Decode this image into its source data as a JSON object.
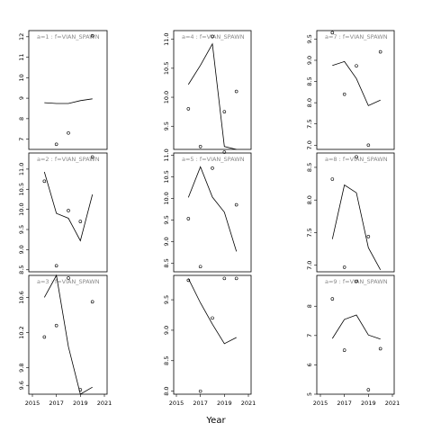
{
  "chart_data": {
    "type": "scatter",
    "xlabel": "Year",
    "ylabel": "",
    "x_ticks": [
      2015,
      2017,
      2019,
      2021
    ],
    "xlim": [
      2015,
      2021
    ],
    "panels": [
      {
        "strip": "a=1 : f=VIAN_SPAWN",
        "ylim": [
          6.5,
          12.3
        ],
        "yticks": [
          7,
          8,
          9,
          10,
          11,
          12
        ],
        "points": [
          [
            2017,
            6.75
          ],
          [
            2018,
            7.3
          ],
          [
            2020,
            12.05
          ]
        ],
        "line": [
          [
            2016,
            8.78
          ],
          [
            2017,
            8.74
          ],
          [
            2018,
            8.74
          ],
          [
            2019,
            8.88
          ],
          [
            2020,
            8.97
          ]
        ]
      },
      {
        "strip": "a=4 : f=VIAN_SPAWN",
        "ylim": [
          9.1,
          11.15
        ],
        "yticks": [
          9.5,
          10.0,
          10.5,
          11.0
        ],
        "points": [
          [
            2016,
            9.8
          ],
          [
            2017,
            9.15
          ],
          [
            2018,
            11.05
          ],
          [
            2019,
            9.75
          ],
          [
            2020,
            10.1
          ]
        ],
        "line": [
          [
            2016,
            10.22
          ],
          [
            2017,
            10.55
          ],
          [
            2018,
            10.92
          ],
          [
            2019,
            9.15
          ],
          [
            2020,
            8.95
          ]
        ]
      },
      {
        "strip": "a=7 : f=VIAN_SPAWN",
        "ylim": [
          6.9,
          9.7
        ],
        "yticks": [
          7.0,
          7.5,
          8.0,
          8.5,
          9.0,
          9.5
        ],
        "points": [
          [
            2016,
            9.65
          ],
          [
            2017,
            8.2
          ],
          [
            2018,
            8.87
          ],
          [
            2019,
            7.0
          ],
          [
            2020,
            9.2
          ]
        ],
        "line": [
          [
            2016,
            8.88
          ],
          [
            2017,
            8.97
          ],
          [
            2018,
            8.57
          ],
          [
            2019,
            7.93
          ],
          [
            2020,
            8.06
          ]
        ]
      },
      {
        "strip": "a=2 : f=VIAN_SPAWN",
        "ylim": [
          8.45,
          11.4
        ],
        "yticks": [
          8.5,
          9.0,
          9.5,
          10.0,
          10.5,
          11.0
        ],
        "points": [
          [
            2016,
            10.7
          ],
          [
            2017,
            8.6
          ],
          [
            2018,
            9.97
          ],
          [
            2019,
            9.7
          ],
          [
            2020,
            11.3
          ]
        ],
        "line": [
          [
            2016,
            10.93
          ],
          [
            2017,
            9.9
          ],
          [
            2018,
            9.78
          ],
          [
            2019,
            9.22
          ],
          [
            2020,
            10.37
          ]
        ]
      },
      {
        "strip": "a=5 : f=VIAN_SPAWN",
        "ylim": [
          8.3,
          11.05
        ],
        "yticks": [
          8.5,
          9.0,
          9.5,
          10.0,
          10.5,
          11.0
        ],
        "points": [
          [
            2016,
            9.53
          ],
          [
            2017,
            8.42
          ],
          [
            2018,
            10.7
          ],
          [
            2019,
            11.07
          ],
          [
            2020,
            9.85
          ]
        ],
        "line": [
          [
            2016,
            10.02
          ],
          [
            2017,
            10.73
          ],
          [
            2018,
            10.03
          ],
          [
            2019,
            9.68
          ],
          [
            2020,
            8.77
          ]
        ]
      },
      {
        "strip": "a=8 : f=VIAN_SPAWN",
        "ylim": [
          6.9,
          8.72
        ],
        "yticks": [
          7.0,
          7.5,
          8.0,
          8.5
        ],
        "points": [
          [
            2016,
            8.32
          ],
          [
            2017,
            6.97
          ],
          [
            2018,
            8.66
          ],
          [
            2019,
            7.44
          ]
        ],
        "line": [
          [
            2016,
            7.4
          ],
          [
            2017,
            8.23
          ],
          [
            2018,
            8.11
          ],
          [
            2019,
            7.27
          ],
          [
            2020,
            6.93
          ]
        ]
      },
      {
        "strip": "a=3 : f=VIAN_SPAWN",
        "ylim": [
          9.5,
          10.85
        ],
        "yticks": [
          9.6,
          9.8,
          10.2,
          10.6
        ],
        "points": [
          [
            2016,
            10.15
          ],
          [
            2017,
            10.28
          ],
          [
            2018,
            10.82
          ],
          [
            2019,
            9.55
          ],
          [
            2020,
            10.55
          ]
        ],
        "line": [
          [
            2016,
            10.6
          ],
          [
            2017,
            11.2
          ],
          [
            2018,
            10.04
          ],
          [
            2019,
            9.49
          ],
          [
            2020,
            9.58
          ]
        ]
      },
      {
        "strip": "",
        "ylim": [
          7.95,
          9.9
        ],
        "yticks": [
          8.0,
          8.5,
          9.0,
          9.5
        ],
        "points": [
          [
            2016,
            9.82
          ],
          [
            2017,
            8.0
          ],
          [
            2018,
            9.2
          ],
          [
            2019,
            9.85
          ],
          [
            2020,
            9.85
          ]
        ],
        "line": [
          [
            2016,
            9.85
          ],
          [
            2017,
            9.45
          ],
          [
            2018,
            9.1
          ],
          [
            2019,
            8.78
          ],
          [
            2020,
            8.88
          ]
        ]
      },
      {
        "strip": "a=9 : f=VIAN_SPAWN",
        "ylim": [
          5.0,
          9.05
        ],
        "yticks": [
          5,
          6,
          7,
          8
        ],
        "points": [
          [
            2016,
            8.25
          ],
          [
            2017,
            6.5
          ],
          [
            2018,
            8.85
          ],
          [
            2019,
            5.15
          ],
          [
            2020,
            6.55
          ]
        ],
        "line": [
          [
            2016,
            6.9
          ],
          [
            2017,
            7.55
          ],
          [
            2018,
            7.7
          ],
          [
            2019,
            7.02
          ],
          [
            2020,
            6.88
          ]
        ]
      }
    ]
  }
}
